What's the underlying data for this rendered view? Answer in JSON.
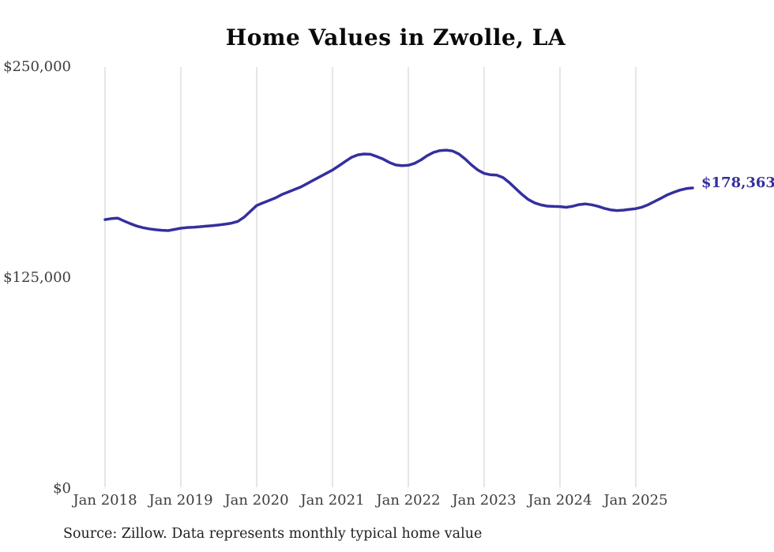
{
  "source_note": "Source: Zillow. Data represents monthly typical home value",
  "colors": {
    "line": "#34309e",
    "gridline": "#cccccc",
    "tick_text": "#3d3d3d",
    "title_text": "#0a0a0a"
  },
  "chart_data": {
    "type": "line",
    "title": "Home Values in Zwolle, LA",
    "xlabel": "",
    "ylabel": "",
    "ylim": [
      0,
      250000
    ],
    "grid": "vertical-only",
    "legend_position": "none",
    "end_annotation": "$178,363",
    "latest_value": 178363,
    "y_ticks": [
      {
        "label": "$250,000",
        "value": 250000
      },
      {
        "label": "$125,000",
        "value": 125000
      },
      {
        "label": "$0",
        "value": 0
      }
    ],
    "x_tick_labels": [
      "Jan 2018",
      "Jan 2019",
      "Jan 2020",
      "Jan 2021",
      "Jan 2022",
      "Jan 2023",
      "Jan 2024",
      "Jan 2025"
    ],
    "x_unit": "month",
    "x": [
      "2018-01",
      "2018-02",
      "2018-03",
      "2018-04",
      "2018-05",
      "2018-06",
      "2018-07",
      "2018-08",
      "2018-09",
      "2018-10",
      "2018-11",
      "2018-12",
      "2019-01",
      "2019-02",
      "2019-03",
      "2019-04",
      "2019-05",
      "2019-06",
      "2019-07",
      "2019-08",
      "2019-09",
      "2019-10",
      "2019-11",
      "2019-12",
      "2020-01",
      "2020-02",
      "2020-03",
      "2020-04",
      "2020-05",
      "2020-06",
      "2020-07",
      "2020-08",
      "2020-09",
      "2020-10",
      "2020-11",
      "2020-12",
      "2021-01",
      "2021-02",
      "2021-03",
      "2021-04",
      "2021-05",
      "2021-06",
      "2021-07",
      "2021-08",
      "2021-09",
      "2021-10",
      "2021-11",
      "2021-12",
      "2022-01",
      "2022-02",
      "2022-03",
      "2022-04",
      "2022-05",
      "2022-06",
      "2022-07",
      "2022-08",
      "2022-09",
      "2022-10",
      "2022-11",
      "2022-12",
      "2023-01",
      "2023-02",
      "2023-03",
      "2023-04",
      "2023-05",
      "2023-06",
      "2023-07",
      "2023-08",
      "2023-09",
      "2023-10",
      "2023-11",
      "2023-12",
      "2024-01",
      "2024-02",
      "2024-03",
      "2024-04",
      "2024-05",
      "2024-06",
      "2024-07",
      "2024-08",
      "2024-09",
      "2024-10",
      "2024-11",
      "2024-12",
      "2025-01",
      "2025-02",
      "2025-03",
      "2025-04",
      "2025-05",
      "2025-06",
      "2025-07",
      "2025-08",
      "2025-09",
      "2025-10"
    ],
    "series": [
      {
        "name": "Monthly typical home value",
        "color": "#34309e",
        "values": [
          159600,
          160200,
          160500,
          158800,
          157200,
          155800,
          154800,
          154100,
          153600,
          153300,
          153100,
          153800,
          154500,
          154900,
          155100,
          155400,
          155700,
          156000,
          156400,
          156900,
          157500,
          158500,
          161000,
          164500,
          168000,
          169500,
          171000,
          172500,
          174500,
          176000,
          177500,
          179000,
          181000,
          183000,
          185000,
          187000,
          189000,
          191500,
          194000,
          196500,
          198000,
          198500,
          198300,
          197000,
          195500,
          193500,
          192000,
          191600,
          191800,
          193000,
          195000,
          197500,
          199500,
          200500,
          200800,
          200300,
          198500,
          195500,
          192000,
          189000,
          187000,
          186200,
          186000,
          184500,
          181500,
          178000,
          174500,
          171500,
          169500,
          168300,
          167600,
          167400,
          167300,
          166900,
          167500,
          168500,
          168900,
          168400,
          167500,
          166300,
          165400,
          165000,
          165200,
          165700,
          166100,
          167000,
          168500,
          170400,
          172300,
          174300,
          175800,
          177100,
          178000,
          178363
        ]
      }
    ]
  }
}
